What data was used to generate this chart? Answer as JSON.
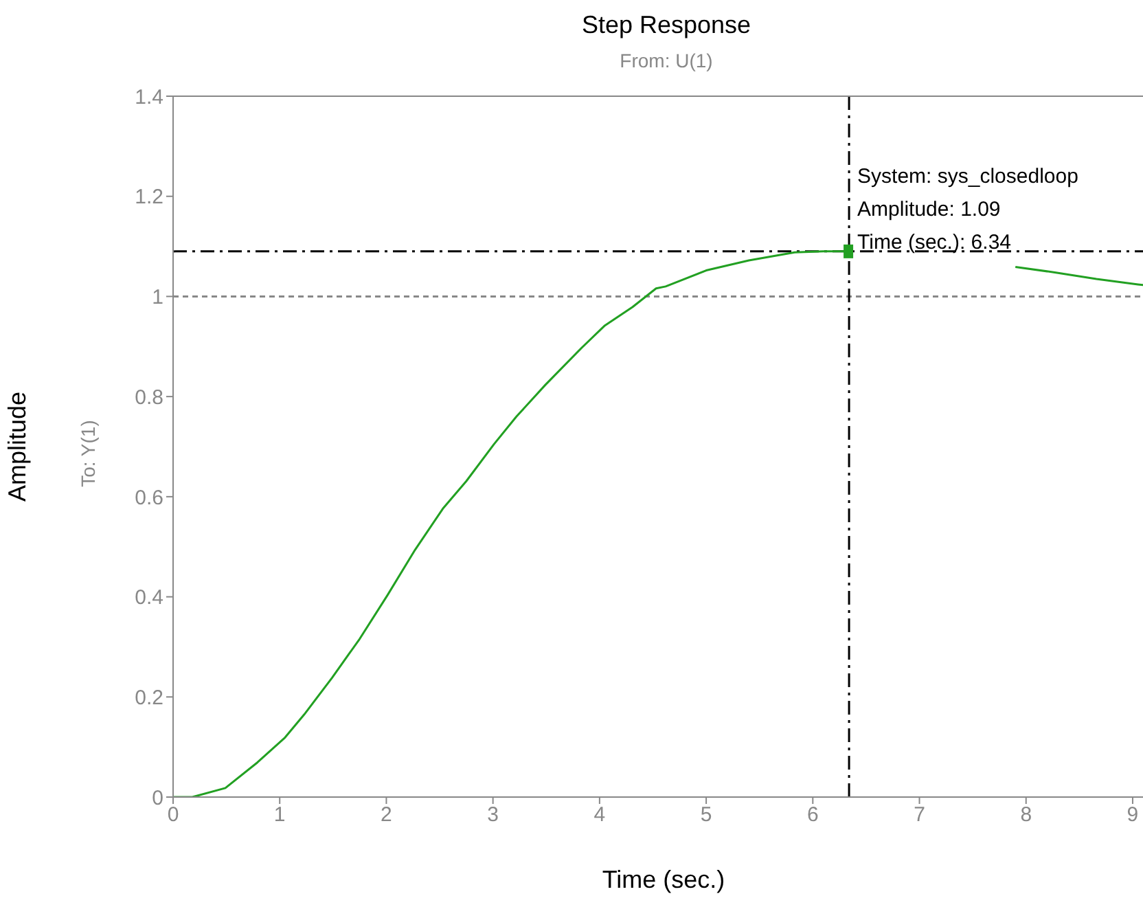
{
  "chart_data": {
    "type": "line",
    "title": "Step Response",
    "subtitle": "From: U(1)",
    "xlabel": "Time (sec.)",
    "ylabel": "Amplitude",
    "annotations": [
      "To: Y(1)",
      {
        "text": "System: sys_closedloop\nAmplitude: 1.09\nTime (sec.): 6.34",
        "x": 6.34,
        "y": 1.09
      }
    ],
    "x": [
      0,
      0.18,
      0.49,
      0.79,
      1.05,
      1.23,
      1.49,
      1.75,
      2.01,
      2.27,
      2.53,
      2.75,
      3.01,
      3.22,
      3.49,
      3.83,
      4.05,
      4.31,
      4.53,
      4.62,
      5.0,
      5.4,
      5.83,
      6.1,
      6.34,
      7.0,
      7.9,
      8.27,
      8.66,
      9.05,
      9.2
    ],
    "series": [
      {
        "color": "#22a022",
        "values": [
          0,
          0,
          0.018,
          0.069,
          0.119,
          0.165,
          0.238,
          0.316,
          0.403,
          0.494,
          0.576,
          0.631,
          0.705,
          0.76,
          0.823,
          0.897,
          0.942,
          0.979,
          1.016,
          1.02,
          1.052,
          1.072,
          1.088,
          1.09,
          1.09,
          null,
          1.059,
          1.048,
          1.035,
          1.024,
          1.02
        ]
      }
    ],
    "xlim": [
      0,
      9.2
    ],
    "xticks": [
      0,
      1,
      2,
      3,
      4,
      5,
      6,
      7,
      8,
      9
    ],
    "ylim": [
      0,
      1.4
    ],
    "yticks": [
      0,
      0.2,
      0.4,
      0.6,
      0.8,
      1,
      1.2,
      1.4
    ],
    "ref_lines": [
      {
        "axis": "y",
        "value": 1,
        "color": "#888888",
        "line_style": "dotted"
      },
      {
        "axis": "y",
        "value": 1.09,
        "color": "#000000",
        "line_style": "dashed"
      },
      {
        "axis": "x",
        "value": 6.34,
        "color": "#000000",
        "line_style": "dashed"
      }
    ],
    "marker": "none",
    "line_style": "solid"
  }
}
